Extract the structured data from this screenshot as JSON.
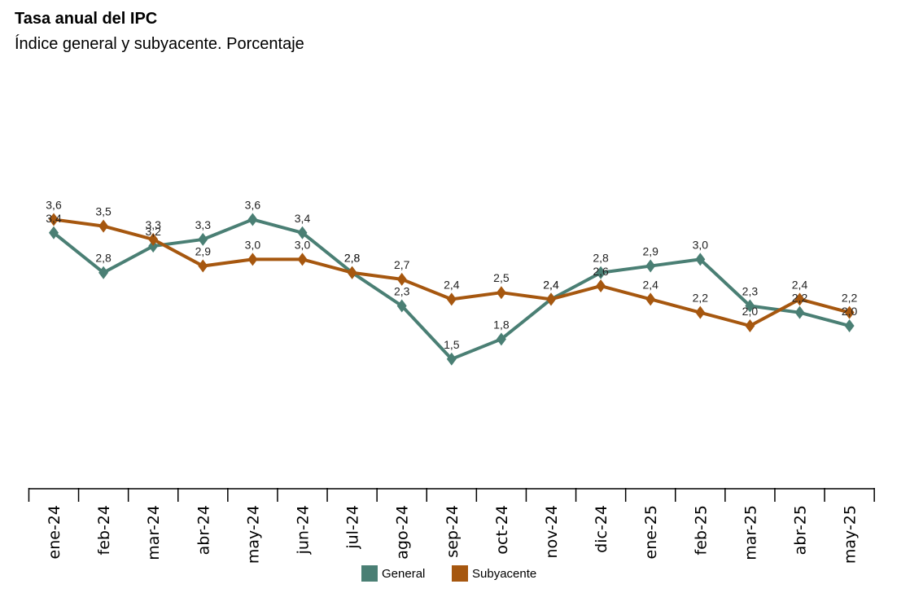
{
  "chart_data": {
    "type": "line",
    "title": "Tasa anual del IPC",
    "subtitle": "Índice general y subyacente. Porcentaje",
    "categories": [
      "ene-24",
      "feb-24",
      "mar-24",
      "abr-24",
      "may-24",
      "jun-24",
      "jul-24",
      "ago-24",
      "sep-24",
      "oct-24",
      "nov-24",
      "dic-24",
      "ene-25",
      "feb-25",
      "mar-25",
      "abr-25",
      "may-25"
    ],
    "series": [
      {
        "name": "General",
        "color": "#4a7f74",
        "values": [
          3.4,
          2.8,
          3.2,
          3.3,
          3.6,
          3.4,
          2.8,
          2.3,
          1.5,
          1.8,
          2.4,
          2.8,
          2.9,
          3.0,
          2.3,
          2.2,
          2.0
        ]
      },
      {
        "name": "Subyacente",
        "color": "#a6570f",
        "values": [
          3.6,
          3.5,
          3.3,
          2.9,
          3.0,
          3.0,
          2.8,
          2.7,
          2.4,
          2.5,
          2.4,
          2.6,
          2.4,
          2.2,
          2.0,
          2.4,
          2.2
        ]
      }
    ],
    "number_format": "decimal-comma",
    "ylim": [
      0,
      4.5
    ],
    "grid": false,
    "legend_position": "bottom-center"
  }
}
